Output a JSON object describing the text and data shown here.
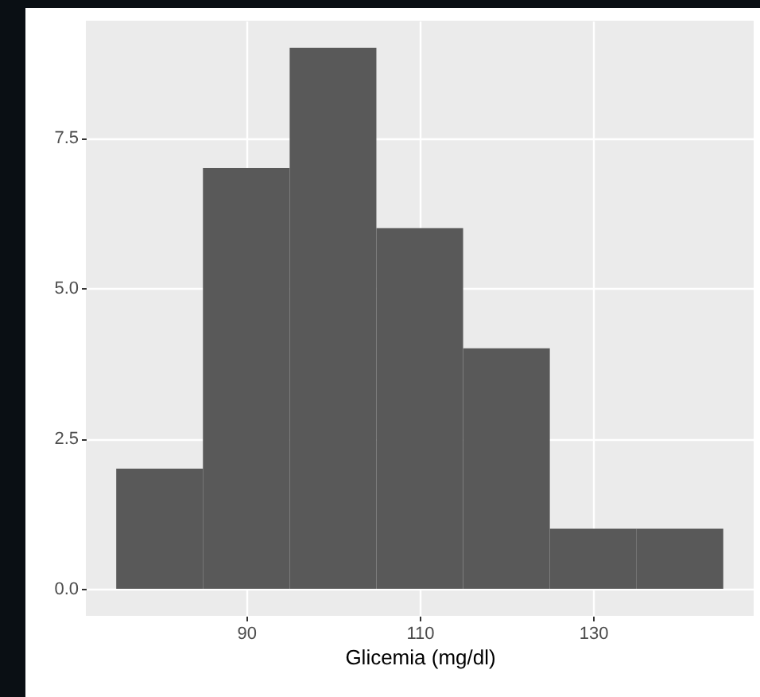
{
  "chart_data": {
    "type": "histogram",
    "xlabel": "Glicemia (mg/dl)",
    "bins": [
      75,
      85,
      95,
      105,
      115,
      125,
      135,
      145
    ],
    "values": [
      2,
      7,
      9,
      6,
      4,
      1,
      1
    ],
    "color": "#595959",
    "xlim": [
      71.5,
      148.5
    ],
    "xticks": [
      90,
      110,
      130
    ],
    "ylim": [
      -0.45,
      9.45
    ],
    "yticks": [
      {
        "value": 0,
        "label": "0.0"
      },
      {
        "value": 2.5,
        "label": "2.5"
      },
      {
        "value": 5,
        "label": "5.0"
      },
      {
        "value": 7.5,
        "label": "7.5"
      }
    ],
    "grid": true
  }
}
